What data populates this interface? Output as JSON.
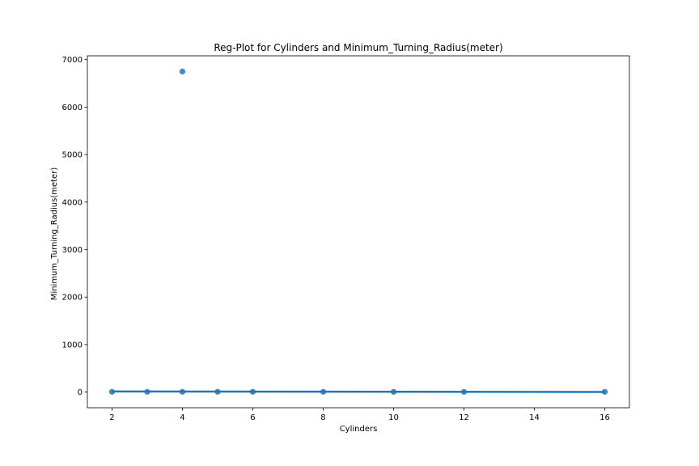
{
  "chart_data": {
    "type": "scatter",
    "title": "Reg-Plot for Cylinders and Minimum_Turning_Radius(meter)",
    "xlabel": "Cylinders",
    "ylabel": "Minimum_Turning_Radius(meter)",
    "xlim": [
      1.3,
      16.7
    ],
    "ylim": [
      -330,
      7080
    ],
    "xticks": [
      2,
      4,
      6,
      8,
      10,
      12,
      14,
      16
    ],
    "yticks": [
      0,
      1000,
      2000,
      3000,
      4000,
      5000,
      6000,
      7000
    ],
    "grid": false,
    "points": [
      {
        "x": 2,
        "y": 5
      },
      {
        "x": 3,
        "y": 5
      },
      {
        "x": 4,
        "y": 5
      },
      {
        "x": 4,
        "y": 6750
      },
      {
        "x": 5,
        "y": 5
      },
      {
        "x": 6,
        "y": 5
      },
      {
        "x": 8,
        "y": 5
      },
      {
        "x": 10,
        "y": 5
      },
      {
        "x": 12,
        "y": 5
      },
      {
        "x": 16,
        "y": 5
      }
    ],
    "regression_line": {
      "x": [
        2,
        16
      ],
      "y": [
        12,
        2
      ]
    },
    "colors": {
      "points": "#1f77b4",
      "line": "#1f77b4"
    }
  }
}
